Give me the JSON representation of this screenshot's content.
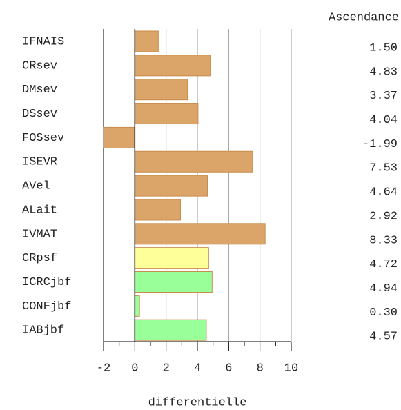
{
  "chart_data": {
    "type": "hbar",
    "title": "Ascendance",
    "x_label": "differentielle",
    "categories": [
      "IFNAIS",
      "CRsev",
      "DMsev",
      "DSsev",
      "FOSsev",
      "ISEVR",
      "AVel",
      "ALait",
      "IVMAT",
      "CRpsf",
      "ICRCjbf",
      "CONFjbf",
      "IABjbf"
    ],
    "values": [
      1.5,
      4.83,
      3.37,
      4.04,
      -1.99,
      7.53,
      4.64,
      2.92,
      8.33,
      4.72,
      4.94,
      0.3,
      4.57
    ],
    "value_labels": [
      "1.50",
      "4.83",
      "3.37",
      "4.04",
      "-1.99",
      "7.53",
      "4.64",
      "2.92",
      "8.33",
      "4.72",
      "4.94",
      "0.30",
      "4.57"
    ],
    "colors": [
      "#dba56a",
      "#dba56a",
      "#dba56a",
      "#dba56a",
      "#dba56a",
      "#dba56a",
      "#dba56a",
      "#dba56a",
      "#dba56a",
      "#ffff99",
      "#99ff99",
      "#99ff99",
      "#99ff99"
    ],
    "xlim": [
      -2,
      10
    ],
    "xticks": [
      -2,
      0,
      2,
      4,
      6,
      8,
      10
    ],
    "grid": true
  }
}
